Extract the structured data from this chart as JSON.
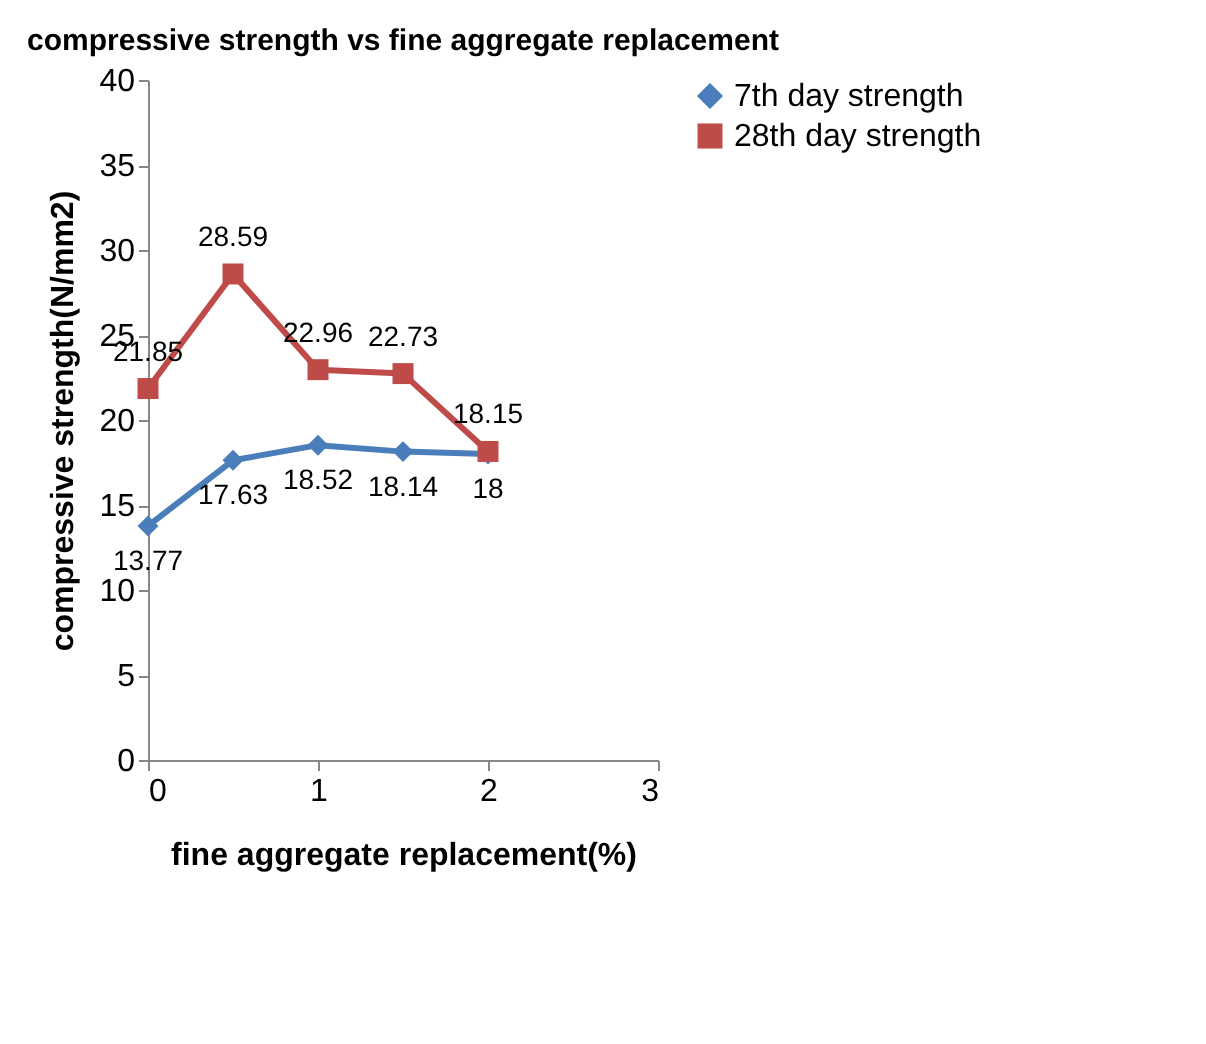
{
  "chart_data": {
    "type": "line",
    "title": "compressive strength vs fine aggregate replacement",
    "xlabel": "fine aggregate replacement(%)",
    "ylabel": "compressive strength(N/mm2)",
    "x": [
      0,
      0.5,
      1,
      1.5,
      2
    ],
    "series": [
      {
        "name": "7th day strength",
        "color": "#4a7ebb",
        "marker": "diamond",
        "values": [
          13.77,
          17.63,
          18.52,
          18.14,
          18
        ]
      },
      {
        "name": "28th day strength",
        "color": "#be4b48",
        "marker": "square",
        "values": [
          21.85,
          28.59,
          22.96,
          22.73,
          18.15
        ]
      }
    ],
    "xlim": [
      0,
      3
    ],
    "xticks": [
      0,
      1,
      2,
      3
    ],
    "ylim": [
      0,
      40
    ],
    "yticks": [
      0,
      5,
      10,
      15,
      20,
      25,
      30,
      35,
      40
    ],
    "data_labels": true,
    "legend": "right",
    "grid": false
  }
}
